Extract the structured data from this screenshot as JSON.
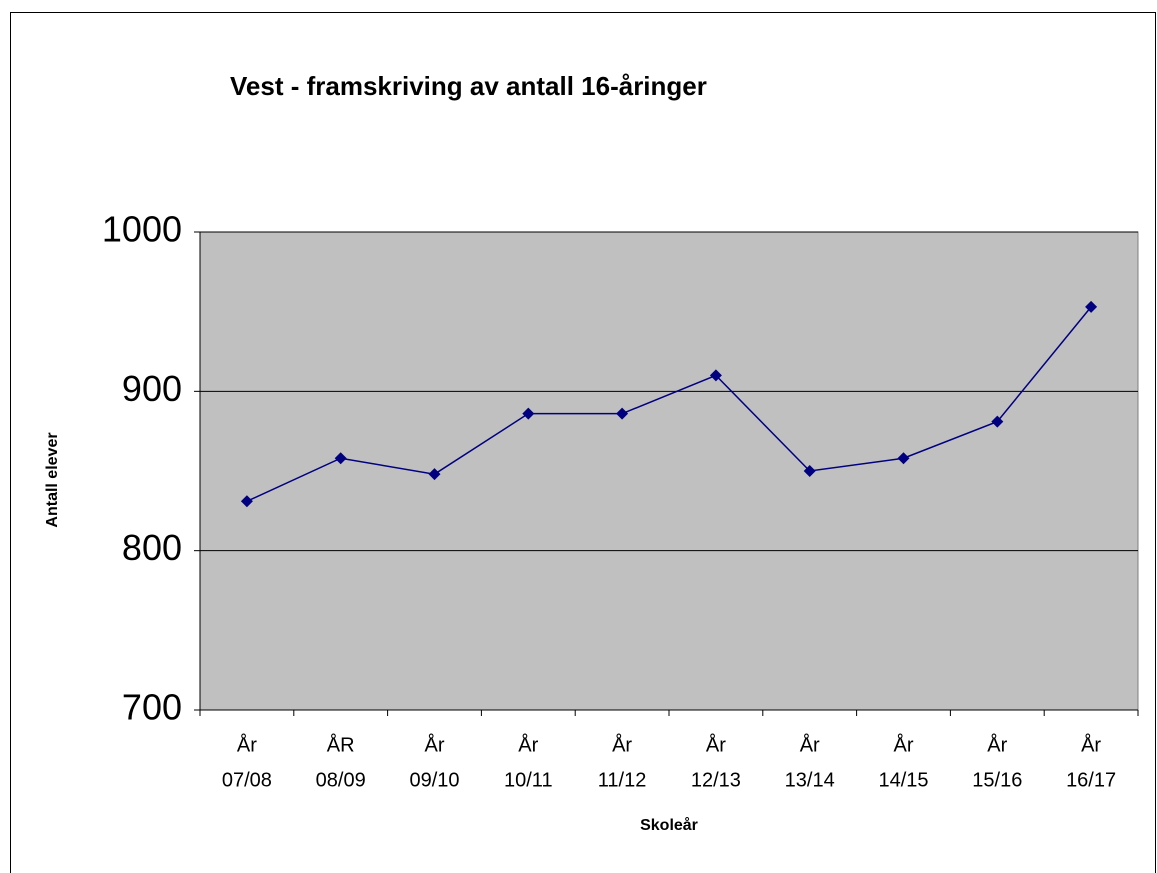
{
  "chart_data": {
    "type": "line",
    "title": "Vest - framskriving av antall 16-åringer",
    "x_label": "Skoleår",
    "y_label": "Antall elever",
    "categories": [
      [
        "År",
        "07/08"
      ],
      [
        "ÅR",
        "08/09"
      ],
      [
        "År",
        "09/10"
      ],
      [
        "År",
        "10/11"
      ],
      [
        "År",
        "11/12"
      ],
      [
        "År",
        "12/13"
      ],
      [
        "År",
        "13/14"
      ],
      [
        "År",
        "14/15"
      ],
      [
        "År",
        "15/16"
      ],
      [
        "År",
        "16/17"
      ]
    ],
    "values": [
      831,
      858,
      848,
      886,
      886,
      910,
      850,
      858,
      881,
      953
    ],
    "color": "#000080",
    "background": "#c0c0c0",
    "ylim": [
      700,
      1000
    ],
    "yticks": [
      700,
      800,
      900,
      1000
    ],
    "grid": true
  }
}
